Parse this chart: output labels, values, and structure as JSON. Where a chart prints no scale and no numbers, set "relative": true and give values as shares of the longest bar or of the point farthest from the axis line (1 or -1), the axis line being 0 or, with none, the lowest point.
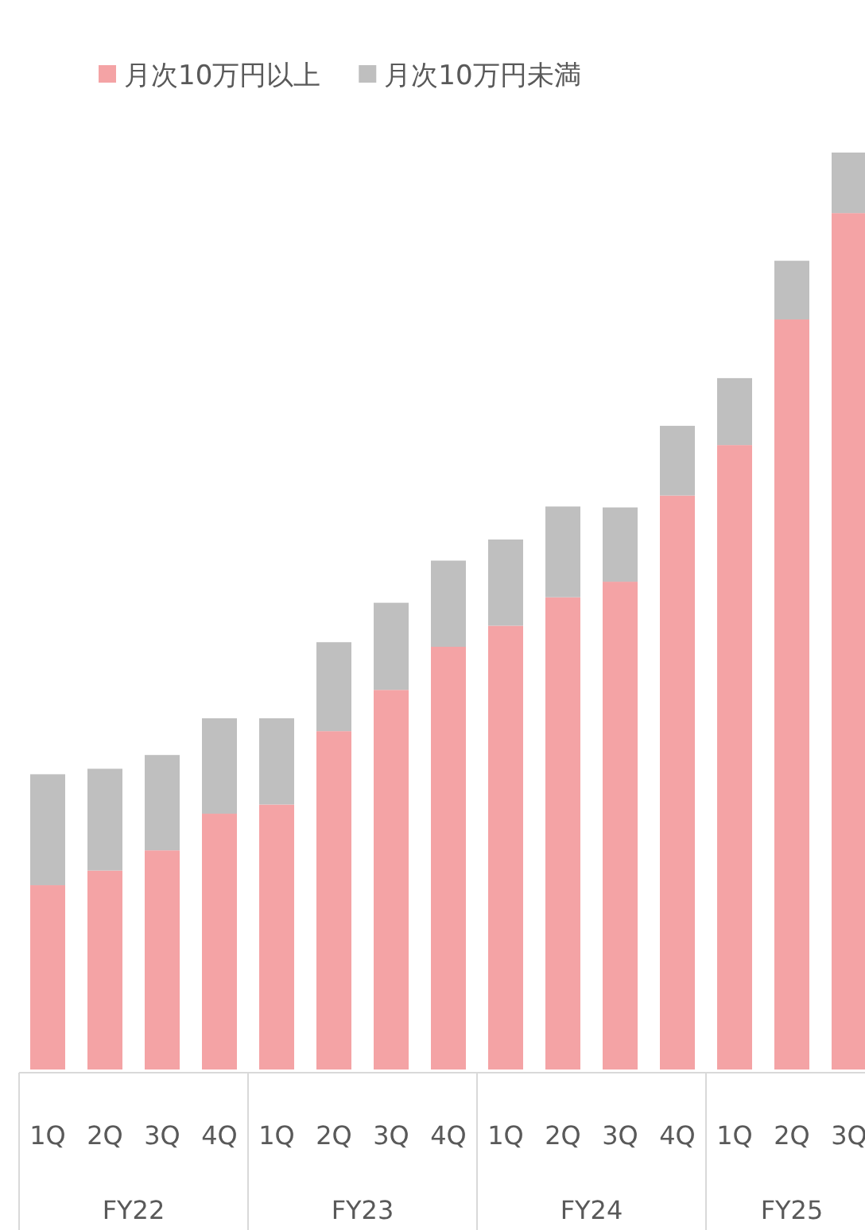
{
  "chart_data": {
    "type": "bar",
    "stacked": true,
    "relative": true,
    "legend": "top left",
    "categories": [
      "1Q",
      "2Q",
      "3Q",
      "4Q",
      "1Q",
      "2Q",
      "3Q",
      "4Q",
      "1Q",
      "2Q",
      "3Q",
      "4Q",
      "1Q",
      "2Q",
      "3Q"
    ],
    "series": [
      {
        "name": "月次10万円以上",
        "color": "#f4a3a5",
        "values": [
          0.201,
          0.217,
          0.239,
          0.279,
          0.289,
          0.369,
          0.414,
          0.461,
          0.484,
          0.515,
          0.532,
          0.626,
          0.681,
          0.818,
          0.934
        ]
      },
      {
        "name": "月次10万円未満",
        "color": "#bfbfbf",
        "values": [
          0.121,
          0.111,
          0.104,
          0.104,
          0.094,
          0.097,
          0.095,
          0.094,
          0.094,
          0.099,
          0.081,
          0.076,
          0.073,
          0.064,
          0.066
        ]
      }
    ],
    "annotations": [
      "FY22",
      "FY23",
      "FY24",
      "FY25"
    ]
  }
}
